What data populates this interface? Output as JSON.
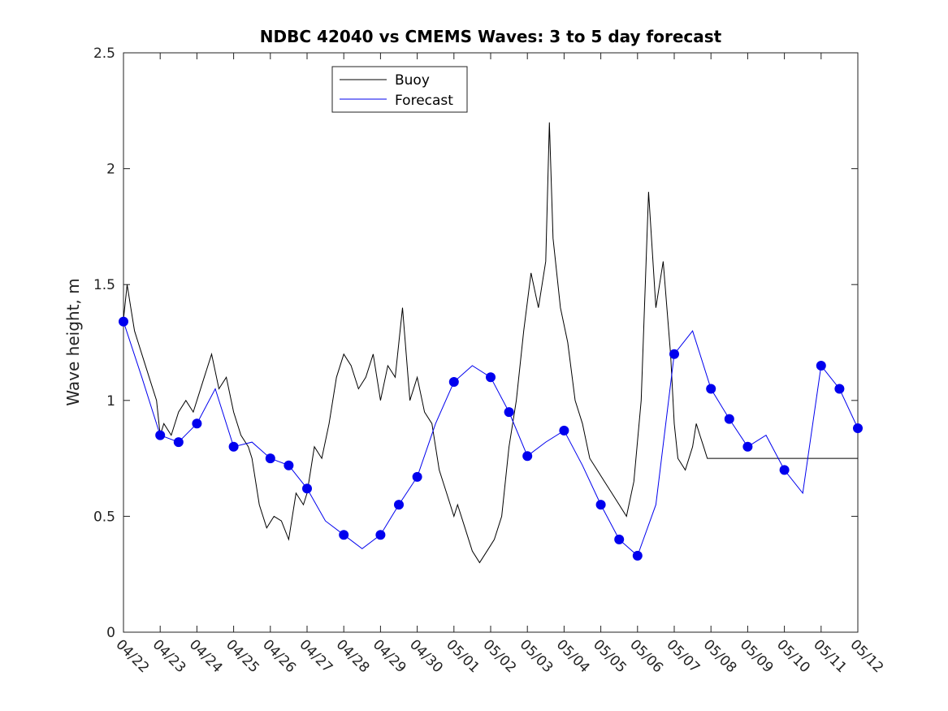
{
  "chart_data": {
    "type": "line",
    "title": "NDBC 42040 vs CMEMS Waves: 3 to 5 day forecast",
    "xlabel": "",
    "ylabel": "Wave height, m",
    "x_ticks": [
      "04/22",
      "04/23",
      "04/24",
      "04/25",
      "04/26",
      "04/27",
      "04/28",
      "04/29",
      "04/30",
      "05/01",
      "05/02",
      "05/03",
      "05/04",
      "05/05",
      "05/06",
      "05/07",
      "05/08",
      "05/09",
      "05/10",
      "05/11",
      "05/12"
    ],
    "xlim": [
      "04/22",
      "05/12"
    ],
    "ylim": [
      0,
      2.5
    ],
    "y_ticks": [
      "0",
      "0.5",
      "1",
      "1.5",
      "2",
      "2.5"
    ],
    "grid": false,
    "legend": {
      "position": "top-center-left",
      "entries": [
        "Buoy",
        "Forecast"
      ]
    },
    "series": [
      {
        "name": "Buoy",
        "color": "#000000",
        "x_days": [
          0,
          0.1,
          0.2,
          0.3,
          0.4,
          0.5,
          0.7,
          0.9,
          1.0,
          1.1,
          1.3,
          1.5,
          1.7,
          1.9,
          2.0,
          2.2,
          2.4,
          2.6,
          2.8,
          3.0,
          3.2,
          3.4,
          3.5,
          3.7,
          3.9,
          4.1,
          4.3,
          4.5,
          4.7,
          4.9,
          5.0,
          5.2,
          5.4,
          5.6,
          5.8,
          6.0,
          6.2,
          6.4,
          6.6,
          6.8,
          7.0,
          7.2,
          7.4,
          7.6,
          7.8,
          8.0,
          8.2,
          8.4,
          8.6,
          8.8,
          9.0,
          9.1,
          9.3,
          9.5,
          9.7,
          9.9,
          10.1,
          10.3,
          10.5,
          10.7,
          10.9,
          11.1,
          11.3,
          11.5,
          11.6,
          11.7,
          11.9,
          12.1,
          12.3,
          12.5,
          12.7,
          12.9,
          13.1,
          13.3,
          13.5,
          13.7,
          13.9,
          14.1,
          14.3,
          14.5,
          14.7,
          14.9,
          15.0,
          15.1,
          15.3,
          15.5,
          15.6,
          15.7,
          15.8,
          15.9,
          16.0,
          16.1,
          16.3,
          16.5,
          16.7,
          16.9,
          17.0,
          17.2,
          17.4,
          17.6,
          17.8,
          18.0,
          18.2,
          18.4,
          18.6,
          18.8,
          19.0,
          19.1,
          19.2,
          19.4,
          19.6,
          19.8,
          20.0
        ],
        "values": [
          1.35,
          1.5,
          1.4,
          1.3,
          1.25,
          1.2,
          1.1,
          1.0,
          0.85,
          0.9,
          0.85,
          0.95,
          1.0,
          0.95,
          1.0,
          1.1,
          1.2,
          1.05,
          1.1,
          0.95,
          0.85,
          0.8,
          0.75,
          0.55,
          0.45,
          0.5,
          0.48,
          0.4,
          0.6,
          0.55,
          0.6,
          0.8,
          0.75,
          0.9,
          1.1,
          1.2,
          1.15,
          1.05,
          1.1,
          1.2,
          1.0,
          1.15,
          1.1,
          1.4,
          1.0,
          1.1,
          0.95,
          0.9,
          0.7,
          0.6,
          0.5,
          0.55,
          0.45,
          0.35,
          0.3,
          0.35,
          0.4,
          0.5,
          0.8,
          1.0,
          1.3,
          1.55,
          1.4,
          1.6,
          2.2,
          1.7,
          1.4,
          1.25,
          1.0,
          0.9,
          0.75,
          0.7,
          0.65,
          0.6,
          0.55,
          0.5,
          0.65,
          1.0,
          1.9,
          1.4,
          1.6,
          1.2,
          0.9,
          0.75,
          0.7,
          0.8,
          0.9,
          0.85,
          0.8,
          0.75,
          0.75,
          0.75,
          0.75,
          0.75,
          0.75,
          0.75,
          0.75,
          0.75,
          0.75,
          0.75,
          0.75,
          0.75,
          0.75,
          0.75,
          0.75,
          0.75,
          0.75,
          0.75,
          0.75,
          0.75,
          0.75,
          0.75,
          0.75
        ]
      },
      {
        "name": "Forecast",
        "color": "#0000ee",
        "x_days": [
          0,
          0.5,
          1,
          1.5,
          2,
          2.5,
          3,
          3.5,
          4,
          4.5,
          5,
          5.5,
          6,
          6.5,
          7,
          7.5,
          8,
          8.5,
          9,
          9.5,
          10,
          10.5,
          11,
          11.5,
          12,
          12.5,
          13,
          13.5,
          14,
          14.5,
          15,
          15.5,
          16,
          16.5,
          17,
          17.5,
          18,
          18.5,
          19,
          19.5,
          20
        ],
        "values": [
          1.34,
          1.1,
          0.85,
          0.82,
          0.9,
          1.05,
          0.8,
          0.82,
          0.75,
          0.72,
          0.62,
          0.48,
          0.42,
          0.36,
          0.42,
          0.55,
          0.67,
          0.9,
          1.08,
          1.15,
          1.1,
          0.95,
          0.76,
          0.82,
          0.87,
          0.72,
          0.55,
          0.4,
          0.33,
          0.55,
          1.2,
          1.3,
          1.05,
          0.92,
          0.8,
          0.85,
          0.7,
          0.6,
          1.15,
          1.05,
          0.88
        ]
      }
    ]
  }
}
